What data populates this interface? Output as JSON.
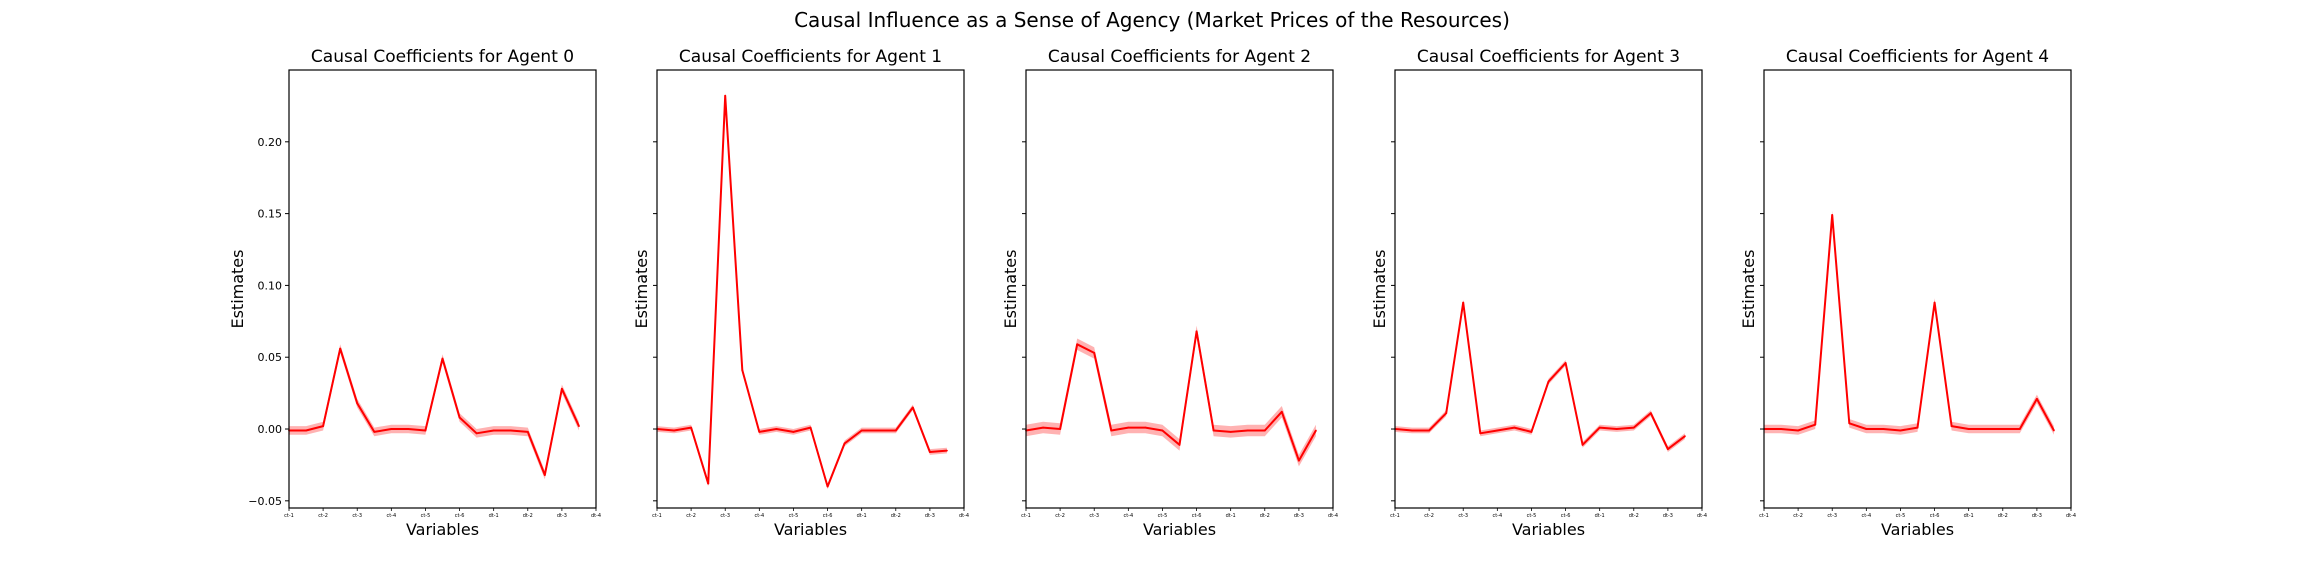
{
  "figure": {
    "suptitle": "Causal Influence as a Sense of Agency (Market Prices of the Resources)"
  },
  "colors": {
    "line": "#ff0000",
    "band": "#ff0000",
    "axes": "#000000",
    "background": "#ffffff"
  },
  "chart_data": [
    {
      "type": "line",
      "title": "Causal Coefficients for Agent 0",
      "xlabel": "Variables",
      "ylabel": "Estimates",
      "ylim": [
        -0.055,
        0.25
      ],
      "yticks": [
        0.2,
        0.15,
        0.1,
        0.05,
        0.0,
        -0.05
      ],
      "ytick_labels": [
        "0.20",
        "0.15",
        "0.10",
        "0.05",
        "0.00",
        "−0.05"
      ],
      "categories": [
        "ct-1",
        "ct-2",
        "ct-3",
        "ct-4",
        "ct-5",
        "ct-6",
        "dt-1",
        "dt-2",
        "dt-3",
        "dt-4"
      ],
      "x": [
        0,
        0.5,
        1,
        1.5,
        2,
        2.5,
        3,
        3.5,
        4,
        4.5,
        5,
        5.5,
        6,
        6.5,
        7,
        7.5,
        8,
        8.5,
        9
      ],
      "series": [
        {
          "values": [
            -0.001,
            -0.001,
            0.002,
            0.056,
            0.018,
            -0.002,
            0.0,
            0.0,
            -0.001,
            0.049,
            0.008,
            -0.003,
            -0.001,
            -0.001,
            -0.002,
            -0.032,
            0.028,
            0.002,
            null
          ],
          "band": 0.003
        }
      ]
    },
    {
      "type": "line",
      "title": "Causal Coefficients for Agent 1",
      "xlabel": "Variables",
      "ylabel": "Estimates",
      "ylim": [
        -0.055,
        0.25
      ],
      "yticks": [
        0.2,
        0.15,
        0.1,
        0.05,
        0.0,
        -0.05
      ],
      "ytick_labels": [],
      "categories": [
        "ct-1",
        "ct-2",
        "ct-3",
        "ct-4",
        "ct-5",
        "ct-6",
        "dt-1",
        "dt-2",
        "dt-3",
        "dt-4"
      ],
      "x": [
        0,
        0.5,
        1,
        1.5,
        2,
        2.5,
        3,
        3.5,
        4,
        4.5,
        5,
        5.5,
        6,
        6.5,
        7,
        7.5,
        8,
        8.5,
        9
      ],
      "series": [
        {
          "values": [
            0.0,
            -0.001,
            0.001,
            -0.038,
            0.232,
            0.041,
            -0.002,
            0.0,
            -0.002,
            0.001,
            -0.04,
            -0.01,
            -0.001,
            -0.001,
            -0.001,
            0.015,
            -0.016,
            -0.015,
            null
          ],
          "band": 0.002
        }
      ]
    },
    {
      "type": "line",
      "title": "Causal Coefficients for Agent 2",
      "xlabel": "Variables",
      "ylabel": "Estimates",
      "ylim": [
        -0.055,
        0.25
      ],
      "yticks": [
        0.2,
        0.15,
        0.1,
        0.05,
        0.0,
        -0.05
      ],
      "ytick_labels": [],
      "categories": [
        "ct-1",
        "ct-2",
        "ct-3",
        "ct-4",
        "ct-5",
        "ct-6",
        "dt-1",
        "dt-2",
        "dt-3",
        "dt-4"
      ],
      "x": [
        0,
        0.5,
        1,
        1.5,
        2,
        2.5,
        3,
        3.5,
        4,
        4.5,
        5,
        5.5,
        6,
        6.5,
        7,
        7.5,
        8,
        8.5,
        9
      ],
      "series": [
        {
          "values": [
            -0.001,
            0.001,
            0.0,
            0.059,
            0.053,
            -0.001,
            0.001,
            0.001,
            -0.001,
            -0.011,
            0.068,
            -0.001,
            -0.002,
            -0.001,
            -0.001,
            0.012,
            -0.022,
            -0.001,
            null
          ],
          "band": 0.004
        }
      ]
    },
    {
      "type": "line",
      "title": "Causal Coefficients for Agent 3",
      "xlabel": "Variables",
      "ylabel": "Estimates",
      "ylim": [
        -0.055,
        0.25
      ],
      "yticks": [
        0.2,
        0.15,
        0.1,
        0.05,
        0.0,
        -0.05
      ],
      "ytick_labels": [],
      "categories": [
        "ct-1",
        "ct-2",
        "ct-3",
        "ct-4",
        "ct-5",
        "ct-6",
        "dt-1",
        "dt-2",
        "dt-3",
        "dt-4"
      ],
      "x": [
        0,
        0.5,
        1,
        1.5,
        2,
        2.5,
        3,
        3.5,
        4,
        4.5,
        5,
        5.5,
        6,
        6.5,
        7,
        7.5,
        8,
        8.5,
        9
      ],
      "series": [
        {
          "values": [
            0.0,
            -0.001,
            -0.001,
            0.011,
            0.088,
            -0.003,
            -0.001,
            0.001,
            -0.002,
            0.033,
            0.046,
            -0.011,
            0.001,
            0.0,
            0.001,
            0.011,
            -0.014,
            -0.005,
            null
          ],
          "band": 0.002
        }
      ]
    },
    {
      "type": "line",
      "title": "Causal Coefficients for Agent 4",
      "xlabel": "Variables",
      "ylabel": "Estimates",
      "ylim": [
        -0.055,
        0.25
      ],
      "yticks": [
        0.2,
        0.15,
        0.1,
        0.05,
        0.0,
        -0.05
      ],
      "ytick_labels": [],
      "categories": [
        "ct-1",
        "ct-2",
        "ct-3",
        "ct-4",
        "ct-5",
        "ct-6",
        "dt-1",
        "dt-2",
        "dt-3",
        "dt-4"
      ],
      "x": [
        0,
        0.5,
        1,
        1.5,
        2,
        2.5,
        3,
        3.5,
        4,
        4.5,
        5,
        5.5,
        6,
        6.5,
        7,
        7.5,
        8,
        8.5,
        9
      ],
      "series": [
        {
          "values": [
            0.0,
            0.0,
            -0.001,
            0.003,
            0.149,
            0.004,
            0.0,
            0.0,
            -0.001,
            0.001,
            0.088,
            0.002,
            0.0,
            0.0,
            0.0,
            0.0,
            0.021,
            -0.001,
            null
          ],
          "band": 0.003
        }
      ]
    }
  ]
}
